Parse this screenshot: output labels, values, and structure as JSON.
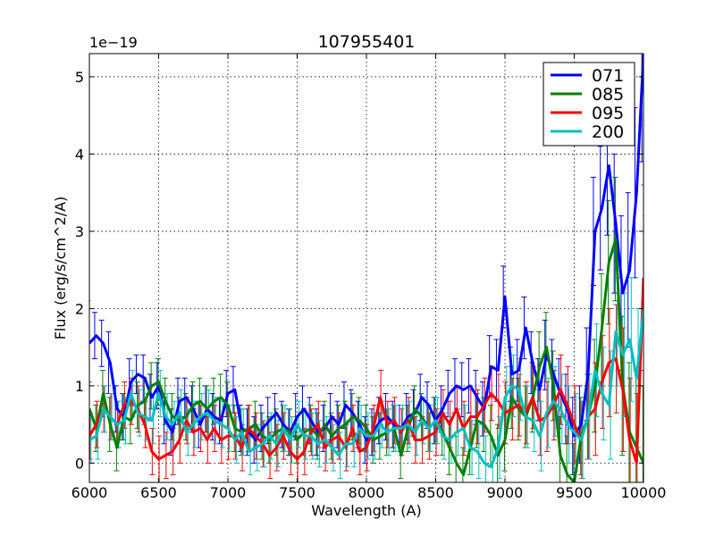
{
  "chart_data": {
    "type": "line",
    "title": "107955401",
    "xlabel": "Wavelength (A)",
    "ylabel": "Flux (erg/s/cm^2/A)",
    "y_exponent_label": "1e−19",
    "xlim": [
      6000,
      10000
    ],
    "ylim": [
      -0.25,
      5.3
    ],
    "x_ticks": [
      6000,
      6500,
      7000,
      7500,
      8000,
      8500,
      9000,
      9500,
      10000
    ],
    "x_tick_labels": [
      "6000",
      "6500",
      "7000",
      "7500",
      "8000",
      "8500",
      "9000",
      "9500",
      "10000"
    ],
    "y_ticks": [
      0,
      1,
      2,
      3,
      4,
      5
    ],
    "y_tick_labels": [
      "0",
      "1",
      "2",
      "3",
      "4",
      "5"
    ],
    "grid": true,
    "legend_position": "top-right",
    "series": [
      {
        "name": "071",
        "color": "#0000ff",
        "x": [
          6000,
          6050,
          6100,
          6150,
          6200,
          6250,
          6300,
          6350,
          6400,
          6450,
          6500,
          6550,
          6600,
          6650,
          6700,
          6750,
          6800,
          6850,
          6900,
          6950,
          7000,
          7050,
          7100,
          7150,
          7200,
          7250,
          7300,
          7350,
          7400,
          7450,
          7500,
          7550,
          7600,
          7650,
          7700,
          7750,
          7800,
          7850,
          7900,
          7950,
          8000,
          8050,
          8100,
          8150,
          8200,
          8250,
          8300,
          8350,
          8400,
          8450,
          8500,
          8550,
          8600,
          8650,
          8700,
          8750,
          8800,
          8850,
          8900,
          8950,
          9000,
          9050,
          9100,
          9150,
          9200,
          9250,
          9300,
          9350,
          9400,
          9450,
          9500,
          9550,
          9600,
          9650,
          9700,
          9750,
          9800,
          9850,
          9900,
          9950,
          10000
        ],
        "values": [
          1.55,
          1.65,
          1.55,
          1.3,
          0.7,
          0.6,
          1.05,
          1.15,
          1.1,
          0.85,
          1.0,
          0.55,
          0.4,
          0.8,
          0.85,
          0.7,
          0.5,
          0.7,
          0.6,
          0.55,
          0.9,
          0.95,
          0.45,
          0.4,
          0.3,
          0.45,
          0.55,
          0.65,
          0.5,
          0.4,
          0.6,
          0.7,
          0.55,
          0.4,
          0.45,
          0.6,
          0.5,
          0.75,
          0.65,
          0.5,
          0.3,
          0.4,
          0.55,
          0.6,
          0.5,
          0.45,
          0.6,
          0.65,
          0.85,
          0.75,
          0.55,
          0.7,
          0.9,
          1.0,
          0.95,
          1.0,
          0.85,
          0.7,
          1.25,
          1.2,
          2.15,
          1.15,
          1.2,
          1.75,
          1.3,
          0.95,
          1.4,
          1.15,
          0.9,
          0.7,
          0.35,
          0.5,
          1.15,
          3.0,
          3.3,
          3.85,
          3.1,
          2.2,
          2.5,
          3.5,
          5.3
        ],
        "errors": [
          0.55,
          0.3,
          0.3,
          0.4,
          0.3,
          0.3,
          0.3,
          0.25,
          0.3,
          0.3,
          0.3,
          0.3,
          0.3,
          0.3,
          0.25,
          0.3,
          0.3,
          0.3,
          0.3,
          0.3,
          0.3,
          0.3,
          0.3,
          0.3,
          0.3,
          0.3,
          0.3,
          0.25,
          0.3,
          0.3,
          0.3,
          0.3,
          0.3,
          0.3,
          0.3,
          0.3,
          0.3,
          0.3,
          0.3,
          0.3,
          0.3,
          0.3,
          0.3,
          0.3,
          0.3,
          0.3,
          0.3,
          0.3,
          0.3,
          0.3,
          0.3,
          0.3,
          0.3,
          0.35,
          0.35,
          0.35,
          0.35,
          0.35,
          0.4,
          0.4,
          0.4,
          0.35,
          0.4,
          0.4,
          0.4,
          0.4,
          0.45,
          0.45,
          0.45,
          0.45,
          0.5,
          0.5,
          0.6,
          0.7,
          0.8,
          0.9,
          0.9,
          1.0,
          1.0,
          1.1,
          1.4
        ]
      },
      {
        "name": "085",
        "color": "#008000",
        "x": [
          6000,
          6050,
          6100,
          6150,
          6200,
          6250,
          6300,
          6350,
          6400,
          6450,
          6500,
          6550,
          6600,
          6650,
          6700,
          6750,
          6800,
          6850,
          6900,
          6950,
          7000,
          7050,
          7100,
          7150,
          7200,
          7250,
          7300,
          7350,
          7400,
          7450,
          7500,
          7550,
          7600,
          7650,
          7700,
          7750,
          7800,
          7850,
          7900,
          7950,
          8000,
          8050,
          8100,
          8150,
          8200,
          8250,
          8300,
          8350,
          8400,
          8450,
          8500,
          8550,
          8600,
          8650,
          8700,
          8750,
          8800,
          8850,
          8900,
          8950,
          9000,
          9050,
          9100,
          9150,
          9200,
          9250,
          9300,
          9350,
          9400,
          9450,
          9500,
          9550,
          9600,
          9650,
          9700,
          9750,
          9800,
          9850,
          9900,
          9950,
          10000
        ],
        "values": [
          0.7,
          0.45,
          0.9,
          0.5,
          0.2,
          0.6,
          0.55,
          0.75,
          0.8,
          1.0,
          1.05,
          0.8,
          0.6,
          0.55,
          0.6,
          0.75,
          0.8,
          0.7,
          0.8,
          0.85,
          0.75,
          0.45,
          0.4,
          0.45,
          0.5,
          0.35,
          0.3,
          0.4,
          0.45,
          0.4,
          0.3,
          0.4,
          0.45,
          0.35,
          0.5,
          0.35,
          0.45,
          0.5,
          0.6,
          0.55,
          0.45,
          0.3,
          0.35,
          0.4,
          0.45,
          0.1,
          0.45,
          0.7,
          0.6,
          0.45,
          0.55,
          0.4,
          0.2,
          0.0,
          -0.15,
          0.2,
          0.55,
          0.5,
          0.35,
          0.1,
          0.3,
          0.85,
          0.7,
          0.6,
          0.85,
          1.25,
          1.5,
          1.0,
          0.1,
          -0.15,
          -0.25,
          0.35,
          0.6,
          1.0,
          1.75,
          2.6,
          2.9,
          1.0,
          0.4,
          0.2,
          0.0
        ],
        "errors": [
          0.35,
          0.3,
          0.3,
          0.35,
          0.3,
          0.3,
          0.3,
          0.3,
          0.3,
          0.3,
          0.3,
          0.3,
          0.3,
          0.3,
          0.3,
          0.3,
          0.3,
          0.3,
          0.3,
          0.3,
          0.3,
          0.3,
          0.3,
          0.3,
          0.3,
          0.3,
          0.3,
          0.3,
          0.3,
          0.3,
          0.3,
          0.3,
          0.3,
          0.3,
          0.3,
          0.3,
          0.3,
          0.3,
          0.3,
          0.3,
          0.3,
          0.3,
          0.3,
          0.3,
          0.3,
          0.3,
          0.3,
          0.3,
          0.3,
          0.3,
          0.3,
          0.3,
          0.35,
          0.35,
          0.35,
          0.35,
          0.35,
          0.35,
          0.4,
          0.4,
          0.4,
          0.4,
          0.4,
          0.4,
          0.45,
          0.45,
          0.45,
          0.45,
          0.5,
          0.5,
          0.5,
          0.5,
          0.55,
          0.6,
          0.7,
          0.8,
          0.8,
          0.9,
          0.9,
          1.0,
          1.0
        ]
      },
      {
        "name": "095",
        "color": "#ff0000",
        "x": [
          6000,
          6050,
          6100,
          6150,
          6200,
          6250,
          6300,
          6350,
          6400,
          6450,
          6500,
          6550,
          6600,
          6650,
          6700,
          6750,
          6800,
          6850,
          6900,
          6950,
          7000,
          7050,
          7100,
          7150,
          7200,
          7250,
          7300,
          7350,
          7400,
          7450,
          7500,
          7550,
          7600,
          7650,
          7700,
          7750,
          7800,
          7850,
          7900,
          7950,
          8000,
          8050,
          8100,
          8150,
          8200,
          8250,
          8300,
          8350,
          8400,
          8450,
          8500,
          8550,
          8600,
          8650,
          8700,
          8750,
          8800,
          8850,
          8900,
          8950,
          9000,
          9050,
          9100,
          9150,
          9200,
          9250,
          9300,
          9350,
          9400,
          9450,
          9500,
          9550,
          9600,
          9650,
          9700,
          9750,
          9800,
          9850,
          9900,
          9950,
          10000
        ],
        "values": [
          0.35,
          0.5,
          0.7,
          0.6,
          0.5,
          0.75,
          0.8,
          0.7,
          0.5,
          0.15,
          0.05,
          0.1,
          0.15,
          0.3,
          0.55,
          0.4,
          0.45,
          0.3,
          0.45,
          0.3,
          0.35,
          0.35,
          0.2,
          0.45,
          0.35,
          0.25,
          0.1,
          0.2,
          0.35,
          0.15,
          0.05,
          0.15,
          0.4,
          0.5,
          0.2,
          0.3,
          0.35,
          0.2,
          0.45,
          0.15,
          0.2,
          0.45,
          0.85,
          0.5,
          0.55,
          0.4,
          0.55,
          0.3,
          0.3,
          0.35,
          0.4,
          0.65,
          0.5,
          0.7,
          0.45,
          0.6,
          0.6,
          0.75,
          0.9,
          0.8,
          0.65,
          0.7,
          0.75,
          0.65,
          0.85,
          0.55,
          0.6,
          0.75,
          0.95,
          0.75,
          0.5,
          0.3,
          0.6,
          0.7,
          1.05,
          1.3,
          1.35,
          0.95,
          0.3,
          0.0,
          2.4
        ],
        "errors": [
          0.3,
          0.3,
          0.3,
          0.3,
          0.3,
          0.3,
          0.3,
          0.3,
          0.3,
          0.3,
          0.3,
          0.3,
          0.3,
          0.3,
          0.3,
          0.3,
          0.3,
          0.3,
          0.3,
          0.3,
          0.3,
          0.3,
          0.3,
          0.3,
          0.3,
          0.3,
          0.3,
          0.3,
          0.3,
          0.3,
          0.3,
          0.3,
          0.3,
          0.3,
          0.3,
          0.3,
          0.3,
          0.3,
          0.3,
          0.3,
          0.3,
          0.3,
          0.35,
          0.3,
          0.3,
          0.3,
          0.3,
          0.3,
          0.3,
          0.3,
          0.3,
          0.3,
          0.3,
          0.3,
          0.35,
          0.35,
          0.35,
          0.35,
          0.35,
          0.35,
          0.4,
          0.4,
          0.4,
          0.4,
          0.4,
          0.45,
          0.45,
          0.45,
          0.45,
          0.5,
          0.5,
          0.5,
          0.55,
          0.6,
          0.6,
          0.7,
          0.7,
          0.8,
          0.8,
          0.9,
          1.2
        ]
      },
      {
        "name": "200",
        "color": "#00bfbf",
        "x": [
          6000,
          6050,
          6100,
          6150,
          6200,
          6250,
          6300,
          6350,
          6400,
          6450,
          6500,
          6550,
          6600,
          6650,
          6700,
          6750,
          6800,
          6850,
          6900,
          6950,
          7000,
          7050,
          7100,
          7150,
          7200,
          7250,
          7300,
          7350,
          7400,
          7450,
          7500,
          7550,
          7600,
          7650,
          7700,
          7750,
          7800,
          7850,
          7900,
          7950,
          8000,
          8050,
          8100,
          8150,
          8200,
          8250,
          8300,
          8350,
          8400,
          8450,
          8500,
          8550,
          8600,
          8650,
          8700,
          8750,
          8800,
          8850,
          8900,
          8950,
          9000,
          9050,
          9100,
          9150,
          9200,
          9250,
          9300,
          9350,
          9400,
          9450,
          9500,
          9550,
          9600,
          9650,
          9700,
          9750,
          9800,
          9850,
          9900,
          9950,
          10000
        ],
        "values": [
          0.3,
          0.35,
          0.7,
          0.6,
          0.5,
          0.55,
          0.9,
          0.65,
          0.6,
          0.55,
          0.9,
          0.6,
          0.5,
          0.65,
          0.4,
          0.5,
          0.6,
          0.65,
          0.55,
          0.5,
          0.45,
          0.3,
          0.4,
          0.15,
          0.2,
          0.25,
          0.35,
          0.25,
          0.45,
          0.3,
          0.5,
          0.35,
          0.35,
          0.25,
          0.3,
          0.2,
          0.1,
          0.25,
          0.25,
          0.45,
          0.35,
          0.35,
          0.5,
          0.4,
          0.45,
          0.45,
          0.5,
          0.4,
          0.55,
          0.45,
          0.55,
          0.35,
          0.3,
          0.4,
          0.45,
          0.2,
          0.15,
          0.0,
          -0.05,
          0.2,
          0.85,
          1.0,
          0.95,
          0.6,
          0.55,
          0.35,
          0.65,
          0.8,
          0.7,
          0.5,
          0.4,
          0.3,
          0.6,
          1.2,
          0.9,
          0.75,
          1.7,
          1.4,
          1.6,
          1.1,
          2.0
        ],
        "errors": [
          0.3,
          0.3,
          0.3,
          0.3,
          0.3,
          0.3,
          0.3,
          0.3,
          0.3,
          0.3,
          0.3,
          0.3,
          0.3,
          0.3,
          0.3,
          0.3,
          0.3,
          0.3,
          0.3,
          0.3,
          0.3,
          0.3,
          0.3,
          0.3,
          0.3,
          0.3,
          0.3,
          0.3,
          0.3,
          0.3,
          0.3,
          0.3,
          0.3,
          0.3,
          0.3,
          0.3,
          0.3,
          0.3,
          0.3,
          0.3,
          0.3,
          0.3,
          0.3,
          0.3,
          0.3,
          0.3,
          0.3,
          0.3,
          0.3,
          0.3,
          0.3,
          0.3,
          0.3,
          0.3,
          0.3,
          0.35,
          0.35,
          0.35,
          0.35,
          0.4,
          0.4,
          0.4,
          0.4,
          0.4,
          0.4,
          0.45,
          0.45,
          0.45,
          0.45,
          0.5,
          0.5,
          0.5,
          0.55,
          0.6,
          0.6,
          0.7,
          0.7,
          0.8,
          0.8,
          0.9,
          1.2
        ]
      }
    ]
  }
}
